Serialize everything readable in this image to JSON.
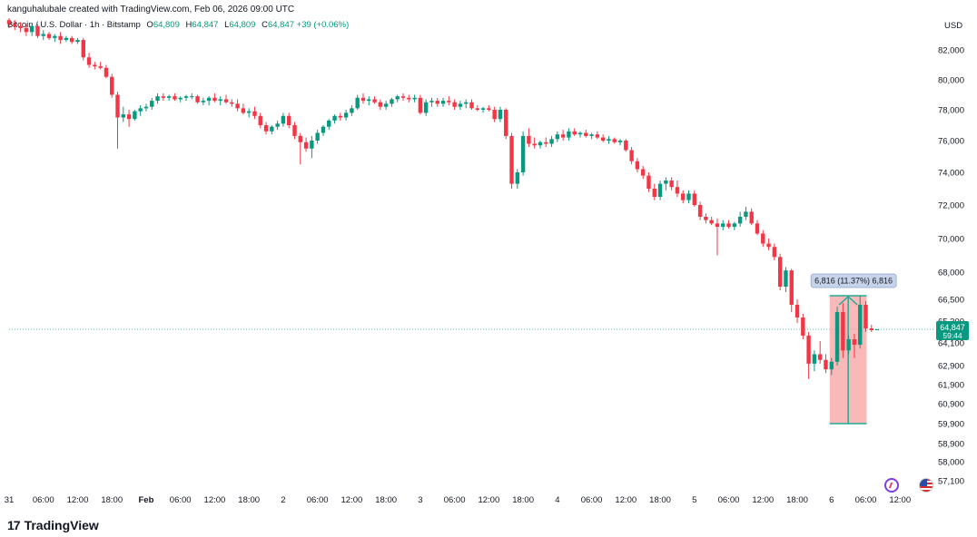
{
  "header": {
    "created_line": "kanguhalubale created with TradingView.com, Feb 06, 2026 09:00 UTC",
    "symbol": "Bitcoin / U.S. Dollar · 1h · Bitstamp",
    "o_label": "O",
    "o_value": "64,809",
    "h_label": "H",
    "h_value": "64,847",
    "l_label": "L",
    "l_value": "64,809",
    "c_label": "C",
    "c_value": "64,847",
    "change": "+39 (+0.06%)"
  },
  "currency": "USD",
  "branding": {
    "name": "TradingView",
    "logo_glyph": "17"
  },
  "icons": [
    "lightning-icon",
    "us-flag-icon"
  ],
  "colors": {
    "up": "#089981",
    "down": "#f23645",
    "measure_fill": "#f7a7a7",
    "measure_stroke": "#22ab94",
    "price_tag": "#089981"
  },
  "chart_data": {
    "type": "candlestick",
    "title": "",
    "ylim": [
      56500,
      83600
    ],
    "price_ticks": [
      "82,000",
      "80,000",
      "78,000",
      "76,000",
      "74,000",
      "72,000",
      "70,000",
      "68,000",
      "66,500",
      "65,300",
      "64,100",
      "62,900",
      "61,900",
      "60,900",
      "59,900",
      "58,900",
      "58,000",
      "57,100"
    ],
    "price_tick_values": [
      82000,
      80000,
      78000,
      76000,
      74000,
      72000,
      70000,
      68000,
      66500,
      65300,
      64100,
      62900,
      61900,
      60900,
      59900,
      58900,
      58000,
      57100
    ],
    "time_ticks": [
      "31",
      "06:00",
      "12:00",
      "18:00",
      "Feb",
      "06:00",
      "12:00",
      "18:00",
      "2",
      "06:00",
      "12:00",
      "18:00",
      "3",
      "06:00",
      "12:00",
      "18:00",
      "4",
      "06:00",
      "12:00",
      "18:00",
      "5",
      "06:00",
      "12:00",
      "18:00",
      "6",
      "06:00",
      "12:00"
    ],
    "time_tick_index": [
      0,
      6,
      12,
      18,
      24,
      30,
      36,
      42,
      48,
      54,
      60,
      66,
      72,
      78,
      84,
      90,
      96,
      102,
      108,
      114,
      120,
      126,
      132,
      138,
      144,
      150,
      156
    ],
    "last_price": {
      "price": "64,847",
      "countdown": "59:44",
      "value": 64847
    },
    "measure": {
      "label": "6,816 (11.37%) 6,816",
      "from_value": 59900,
      "to_value": 66700,
      "start_index": 144,
      "end_index": 149
    },
    "candles": [
      {
        "o": 83500,
        "h": 83600,
        "l": 83100,
        "c": 83300
      },
      {
        "o": 83300,
        "h": 83500,
        "l": 83000,
        "c": 83200
      },
      {
        "o": 83200,
        "h": 83400,
        "l": 82900,
        "c": 83100
      },
      {
        "o": 83100,
        "h": 83300,
        "l": 82700,
        "c": 82900
      },
      {
        "o": 82900,
        "h": 83300,
        "l": 82700,
        "c": 83200
      },
      {
        "o": 83200,
        "h": 83300,
        "l": 82600,
        "c": 82700
      },
      {
        "o": 82700,
        "h": 83000,
        "l": 82500,
        "c": 82800
      },
      {
        "o": 82800,
        "h": 82900,
        "l": 82500,
        "c": 82600
      },
      {
        "o": 82600,
        "h": 82800,
        "l": 82400,
        "c": 82700
      },
      {
        "o": 82700,
        "h": 82900,
        "l": 82300,
        "c": 82500
      },
      {
        "o": 82500,
        "h": 82700,
        "l": 82400,
        "c": 82600
      },
      {
        "o": 82600,
        "h": 82700,
        "l": 82300,
        "c": 82400
      },
      {
        "o": 82400,
        "h": 82600,
        "l": 82300,
        "c": 82500
      },
      {
        "o": 82500,
        "h": 82600,
        "l": 81300,
        "c": 81500
      },
      {
        "o": 81500,
        "h": 81800,
        "l": 80800,
        "c": 81000
      },
      {
        "o": 81000,
        "h": 81200,
        "l": 80700,
        "c": 80900
      },
      {
        "o": 80900,
        "h": 81200,
        "l": 80700,
        "c": 80800
      },
      {
        "o": 80800,
        "h": 81000,
        "l": 80100,
        "c": 80200
      },
      {
        "o": 80200,
        "h": 80400,
        "l": 78800,
        "c": 79000
      },
      {
        "o": 79000,
        "h": 79200,
        "l": 75500,
        "c": 77500
      },
      {
        "o": 77500,
        "h": 78200,
        "l": 77200,
        "c": 77700
      },
      {
        "o": 77700,
        "h": 78000,
        "l": 76900,
        "c": 77400
      },
      {
        "o": 77400,
        "h": 78000,
        "l": 77300,
        "c": 77900
      },
      {
        "o": 77900,
        "h": 78300,
        "l": 77600,
        "c": 78100
      },
      {
        "o": 78100,
        "h": 78400,
        "l": 77900,
        "c": 78200
      },
      {
        "o": 78200,
        "h": 78800,
        "l": 78000,
        "c": 78600
      },
      {
        "o": 78600,
        "h": 79100,
        "l": 78400,
        "c": 78900
      },
      {
        "o": 78900,
        "h": 79100,
        "l": 78600,
        "c": 78800
      },
      {
        "o": 78800,
        "h": 79000,
        "l": 78600,
        "c": 78900
      },
      {
        "o": 78900,
        "h": 79100,
        "l": 78600,
        "c": 78700
      },
      {
        "o": 78700,
        "h": 78900,
        "l": 78500,
        "c": 78800
      },
      {
        "o": 78800,
        "h": 79000,
        "l": 78600,
        "c": 78900
      },
      {
        "o": 78900,
        "h": 79100,
        "l": 78700,
        "c": 78900
      },
      {
        "o": 78900,
        "h": 79000,
        "l": 78400,
        "c": 78500
      },
      {
        "o": 78500,
        "h": 78800,
        "l": 78300,
        "c": 78600
      },
      {
        "o": 78600,
        "h": 78900,
        "l": 78300,
        "c": 78800
      },
      {
        "o": 78800,
        "h": 79100,
        "l": 78500,
        "c": 78600
      },
      {
        "o": 78600,
        "h": 78900,
        "l": 78300,
        "c": 78700
      },
      {
        "o": 78700,
        "h": 79000,
        "l": 78400,
        "c": 78500
      },
      {
        "o": 78500,
        "h": 78700,
        "l": 78200,
        "c": 78400
      },
      {
        "o": 78400,
        "h": 78700,
        "l": 77900,
        "c": 78100
      },
      {
        "o": 78100,
        "h": 78400,
        "l": 77700,
        "c": 77800
      },
      {
        "o": 77800,
        "h": 78100,
        "l": 77500,
        "c": 77900
      },
      {
        "o": 77900,
        "h": 78200,
        "l": 77400,
        "c": 77600
      },
      {
        "o": 77600,
        "h": 77800,
        "l": 76800,
        "c": 77000
      },
      {
        "o": 77000,
        "h": 77200,
        "l": 76400,
        "c": 76600
      },
      {
        "o": 76600,
        "h": 77000,
        "l": 76400,
        "c": 76900
      },
      {
        "o": 76900,
        "h": 77300,
        "l": 76700,
        "c": 77100
      },
      {
        "o": 77100,
        "h": 77800,
        "l": 76900,
        "c": 77600
      },
      {
        "o": 77600,
        "h": 77800,
        "l": 76800,
        "c": 77000
      },
      {
        "o": 77000,
        "h": 77200,
        "l": 76100,
        "c": 76300
      },
      {
        "o": 76300,
        "h": 76500,
        "l": 74500,
        "c": 75900
      },
      {
        "o": 75900,
        "h": 76200,
        "l": 75300,
        "c": 75500
      },
      {
        "o": 75500,
        "h": 76300,
        "l": 74900,
        "c": 76000
      },
      {
        "o": 76000,
        "h": 76700,
        "l": 75800,
        "c": 76500
      },
      {
        "o": 76500,
        "h": 77000,
        "l": 76300,
        "c": 76900
      },
      {
        "o": 76900,
        "h": 77400,
        "l": 76700,
        "c": 77300
      },
      {
        "o": 77300,
        "h": 77700,
        "l": 77100,
        "c": 77600
      },
      {
        "o": 77600,
        "h": 77800,
        "l": 77300,
        "c": 77500
      },
      {
        "o": 77500,
        "h": 78000,
        "l": 77300,
        "c": 77800
      },
      {
        "o": 77800,
        "h": 78300,
        "l": 77600,
        "c": 78100
      },
      {
        "o": 78100,
        "h": 79000,
        "l": 78000,
        "c": 78800
      },
      {
        "o": 78800,
        "h": 79100,
        "l": 78400,
        "c": 78600
      },
      {
        "o": 78600,
        "h": 78900,
        "l": 78300,
        "c": 78700
      },
      {
        "o": 78700,
        "h": 78900,
        "l": 78400,
        "c": 78500
      },
      {
        "o": 78500,
        "h": 78700,
        "l": 78000,
        "c": 78200
      },
      {
        "o": 78200,
        "h": 78600,
        "l": 78000,
        "c": 78400
      },
      {
        "o": 78400,
        "h": 78800,
        "l": 78200,
        "c": 78700
      },
      {
        "o": 78700,
        "h": 79000,
        "l": 78500,
        "c": 78900
      },
      {
        "o": 78900,
        "h": 79100,
        "l": 78600,
        "c": 78800
      },
      {
        "o": 78800,
        "h": 79000,
        "l": 78500,
        "c": 78700
      },
      {
        "o": 78700,
        "h": 79000,
        "l": 78500,
        "c": 78800
      },
      {
        "o": 78800,
        "h": 79000,
        "l": 77700,
        "c": 77800
      },
      {
        "o": 77800,
        "h": 78700,
        "l": 77600,
        "c": 78500
      },
      {
        "o": 78500,
        "h": 78800,
        "l": 78200,
        "c": 78600
      },
      {
        "o": 78600,
        "h": 78800,
        "l": 78200,
        "c": 78400
      },
      {
        "o": 78400,
        "h": 78800,
        "l": 78200,
        "c": 78600
      },
      {
        "o": 78600,
        "h": 78900,
        "l": 78300,
        "c": 78500
      },
      {
        "o": 78500,
        "h": 78700,
        "l": 78000,
        "c": 78200
      },
      {
        "o": 78200,
        "h": 78600,
        "l": 78000,
        "c": 78400
      },
      {
        "o": 78400,
        "h": 78700,
        "l": 78100,
        "c": 78500
      },
      {
        "o": 78500,
        "h": 78700,
        "l": 78000,
        "c": 78100
      },
      {
        "o": 78100,
        "h": 78300,
        "l": 77900,
        "c": 78000
      },
      {
        "o": 78000,
        "h": 78200,
        "l": 77800,
        "c": 78100
      },
      {
        "o": 78100,
        "h": 78300,
        "l": 77900,
        "c": 78000
      },
      {
        "o": 78000,
        "h": 78200,
        "l": 77200,
        "c": 77400
      },
      {
        "o": 77400,
        "h": 78200,
        "l": 77200,
        "c": 78000
      },
      {
        "o": 78000,
        "h": 78100,
        "l": 76100,
        "c": 76300
      },
      {
        "o": 76300,
        "h": 76500,
        "l": 73000,
        "c": 73300
      },
      {
        "o": 73300,
        "h": 74200,
        "l": 73000,
        "c": 74000
      },
      {
        "o": 74000,
        "h": 76600,
        "l": 73800,
        "c": 76300
      },
      {
        "o": 76300,
        "h": 76800,
        "l": 75600,
        "c": 75800
      },
      {
        "o": 75800,
        "h": 76200,
        "l": 75500,
        "c": 75700
      },
      {
        "o": 75700,
        "h": 76000,
        "l": 75500,
        "c": 75900
      },
      {
        "o": 75900,
        "h": 76200,
        "l": 75600,
        "c": 75800
      },
      {
        "o": 75800,
        "h": 76300,
        "l": 75600,
        "c": 76100
      },
      {
        "o": 76100,
        "h": 76600,
        "l": 75900,
        "c": 76400
      },
      {
        "o": 76400,
        "h": 76700,
        "l": 76000,
        "c": 76200
      },
      {
        "o": 76200,
        "h": 76800,
        "l": 76000,
        "c": 76600
      },
      {
        "o": 76600,
        "h": 76800,
        "l": 76300,
        "c": 76400
      },
      {
        "o": 76400,
        "h": 76600,
        "l": 76200,
        "c": 76500
      },
      {
        "o": 76500,
        "h": 76700,
        "l": 76200,
        "c": 76300
      },
      {
        "o": 76300,
        "h": 76500,
        "l": 76100,
        "c": 76400
      },
      {
        "o": 76400,
        "h": 76600,
        "l": 76100,
        "c": 76200
      },
      {
        "o": 76200,
        "h": 76400,
        "l": 75900,
        "c": 76000
      },
      {
        "o": 76000,
        "h": 76300,
        "l": 75800,
        "c": 76100
      },
      {
        "o": 76100,
        "h": 76200,
        "l": 75800,
        "c": 75900
      },
      {
        "o": 75900,
        "h": 76100,
        "l": 75700,
        "c": 76000
      },
      {
        "o": 76000,
        "h": 76100,
        "l": 75300,
        "c": 75400
      },
      {
        "o": 75400,
        "h": 75600,
        "l": 74500,
        "c": 74700
      },
      {
        "o": 74700,
        "h": 74900,
        "l": 74000,
        "c": 74200
      },
      {
        "o": 74200,
        "h": 74400,
        "l": 73600,
        "c": 73800
      },
      {
        "o": 73800,
        "h": 74000,
        "l": 72800,
        "c": 73000
      },
      {
        "o": 73000,
        "h": 73300,
        "l": 72300,
        "c": 72500
      },
      {
        "o": 72500,
        "h": 73500,
        "l": 72300,
        "c": 73300
      },
      {
        "o": 73300,
        "h": 73700,
        "l": 72900,
        "c": 73500
      },
      {
        "o": 73500,
        "h": 73700,
        "l": 72900,
        "c": 73100
      },
      {
        "o": 73100,
        "h": 73500,
        "l": 72500,
        "c": 72700
      },
      {
        "o": 72700,
        "h": 72900,
        "l": 72100,
        "c": 72300
      },
      {
        "o": 72300,
        "h": 72900,
        "l": 72100,
        "c": 72700
      },
      {
        "o": 72700,
        "h": 72900,
        "l": 71900,
        "c": 72000
      },
      {
        "o": 72000,
        "h": 72200,
        "l": 71100,
        "c": 71300
      },
      {
        "o": 71300,
        "h": 71500,
        "l": 70900,
        "c": 71100
      },
      {
        "o": 71100,
        "h": 71300,
        "l": 70800,
        "c": 70900
      },
      {
        "o": 70900,
        "h": 71200,
        "l": 69000,
        "c": 70700
      },
      {
        "o": 70700,
        "h": 71100,
        "l": 70500,
        "c": 70900
      },
      {
        "o": 70900,
        "h": 71100,
        "l": 70600,
        "c": 70700
      },
      {
        "o": 70700,
        "h": 71000,
        "l": 70500,
        "c": 70900
      },
      {
        "o": 70900,
        "h": 71600,
        "l": 70700,
        "c": 71300
      },
      {
        "o": 71300,
        "h": 71900,
        "l": 71100,
        "c": 71600
      },
      {
        "o": 71600,
        "h": 71800,
        "l": 70800,
        "c": 70900
      },
      {
        "o": 70900,
        "h": 71100,
        "l": 70200,
        "c": 70300
      },
      {
        "o": 70300,
        "h": 70500,
        "l": 69500,
        "c": 69700
      },
      {
        "o": 69700,
        "h": 70000,
        "l": 69300,
        "c": 69500
      },
      {
        "o": 69500,
        "h": 69700,
        "l": 68700,
        "c": 68900
      },
      {
        "o": 68900,
        "h": 69100,
        "l": 67000,
        "c": 67200
      },
      {
        "o": 67200,
        "h": 68300,
        "l": 66900,
        "c": 68100
      },
      {
        "o": 68100,
        "h": 68200,
        "l": 65800,
        "c": 66200
      },
      {
        "o": 66200,
        "h": 66500,
        "l": 65200,
        "c": 65500
      },
      {
        "o": 65500,
        "h": 65700,
        "l": 64300,
        "c": 64500
      },
      {
        "o": 64500,
        "h": 64700,
        "l": 62200,
        "c": 63000
      },
      {
        "o": 63000,
        "h": 63700,
        "l": 62600,
        "c": 63500
      },
      {
        "o": 63500,
        "h": 64200,
        "l": 63000,
        "c": 63200
      },
      {
        "o": 63200,
        "h": 63500,
        "l": 62500,
        "c": 62700
      },
      {
        "o": 62700,
        "h": 63300,
        "l": 62400,
        "c": 63100
      },
      {
        "o": 63100,
        "h": 66100,
        "l": 62900,
        "c": 65800
      },
      {
        "o": 65800,
        "h": 66300,
        "l": 63300,
        "c": 63700
      },
      {
        "o": 63700,
        "h": 64500,
        "l": 63500,
        "c": 64300
      },
      {
        "o": 64300,
        "h": 64600,
        "l": 63300,
        "c": 64000
      },
      {
        "o": 64000,
        "h": 66700,
        "l": 63800,
        "c": 66200
      },
      {
        "o": 66200,
        "h": 66400,
        "l": 64700,
        "c": 64900
      },
      {
        "o": 64900,
        "h": 65100,
        "l": 64700,
        "c": 64800
      },
      {
        "o": 64809,
        "h": 64847,
        "l": 64809,
        "c": 64847
      }
    ]
  }
}
